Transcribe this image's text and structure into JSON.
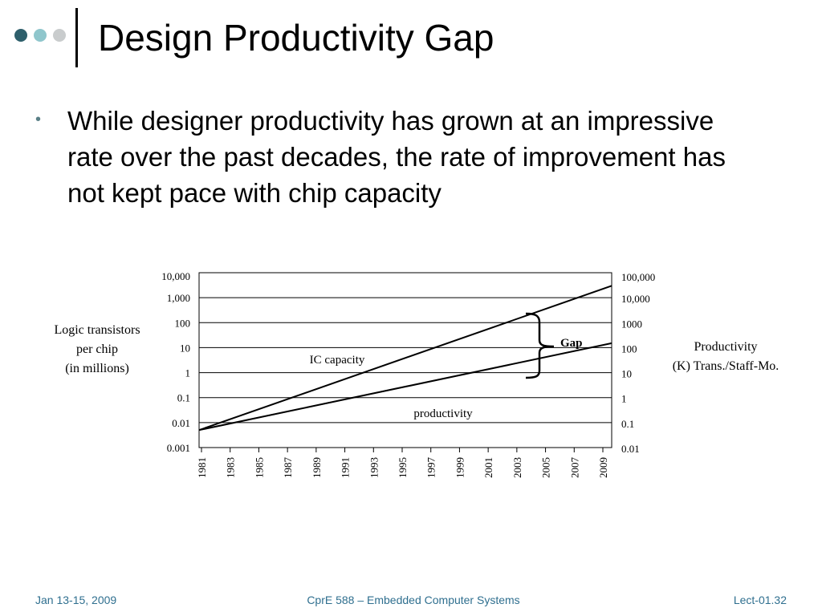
{
  "slide": {
    "title": "Design Productivity Gap",
    "bullet": "While designer productivity has grown at an impressive rate over the past decades, the rate of improvement has not kept pace with chip capacity",
    "dot_colors": [
      "#2e5f6b",
      "#8fc6cc",
      "#c9cccd"
    ]
  },
  "chart_data": {
    "type": "line",
    "x": [
      1981,
      2009
    ],
    "xticks": [
      "1981",
      "1983",
      "1985",
      "1987",
      "1989",
      "1991",
      "1993",
      "1995",
      "1997",
      "1999",
      "2001",
      "2003",
      "2005",
      "2007",
      "2009"
    ],
    "xlim": [
      1981,
      2010
    ],
    "y_left": {
      "label_lines": [
        "Logic transistors",
        "per chip",
        "(in millions)"
      ],
      "ticks": [
        "10,000",
        "1,000",
        "100",
        "10",
        "1",
        "0.1",
        "0.01",
        "0.001"
      ],
      "ylim": [
        0.001,
        10000
      ],
      "scale": "log"
    },
    "y_right": {
      "label_lines": [
        "Productivity",
        "(K) Trans./Staff-Mo."
      ],
      "ticks": [
        "100,000",
        "10,000",
        "1000",
        "100",
        "10",
        "1",
        "0.1",
        "0.01"
      ],
      "ylim": [
        0.01,
        100000
      ],
      "scale": "log"
    },
    "series": [
      {
        "name": "IC capacity",
        "axis": "left",
        "x": [
          1981,
          2010
        ],
        "y": [
          0.005,
          3000
        ]
      },
      {
        "name": "productivity",
        "axis": "right",
        "x": [
          1981,
          2010
        ],
        "y": [
          0.05,
          150
        ]
      }
    ],
    "annotations": {
      "gap_label": "Gap"
    },
    "grid": true
  },
  "footer": {
    "left": "Jan 13-15, 2009",
    "center": "CprE 588 – Embedded Computer Systems",
    "right": "Lect-01.32"
  }
}
